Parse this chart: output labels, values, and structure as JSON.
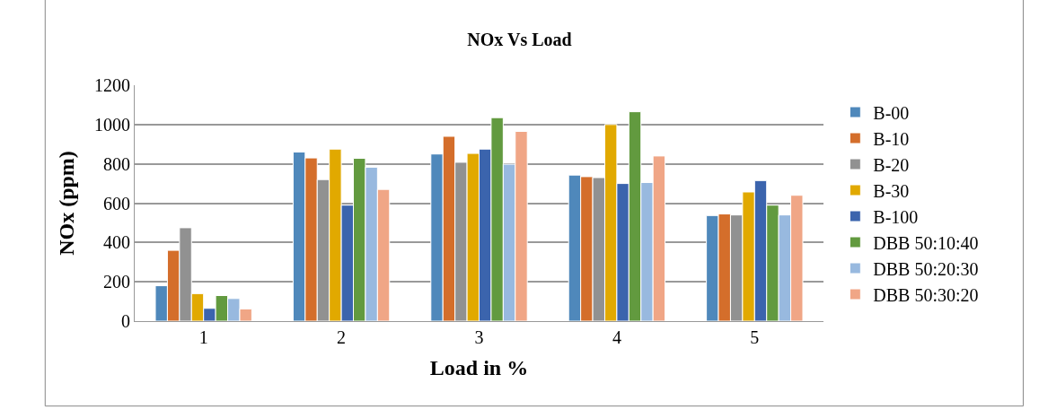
{
  "chart_data": {
    "type": "bar",
    "title": "NOx Vs Load",
    "xlabel": "Load in %",
    "ylabel": "NOx (ppm)",
    "categories": [
      "1",
      "2",
      "3",
      "4",
      "5"
    ],
    "series": [
      {
        "name": "B-00",
        "color": "#4f88bb",
        "values": [
          180,
          860,
          850,
          743,
          537
        ]
      },
      {
        "name": "B-10",
        "color": "#d46e2b",
        "values": [
          360,
          830,
          940,
          735,
          545
        ]
      },
      {
        "name": "B-20",
        "color": "#919191",
        "values": [
          475,
          720,
          808,
          730,
          540
        ]
      },
      {
        "name": "B-30",
        "color": "#e1a900",
        "values": [
          140,
          875,
          853,
          1000,
          657
        ]
      },
      {
        "name": "B-100",
        "color": "#3b64ad",
        "values": [
          65,
          590,
          875,
          700,
          715
        ]
      },
      {
        "name": "DBB 50:10:40",
        "color": "#629a3f",
        "values": [
          130,
          828,
          1035,
          1065,
          590
        ]
      },
      {
        "name": "DBB 50:20:30",
        "color": "#98b9df",
        "values": [
          115,
          783,
          798,
          705,
          540
        ]
      },
      {
        "name": "DBB 50:30:20",
        "color": "#f0a686",
        "values": [
          62,
          670,
          965,
          840,
          640
        ]
      }
    ],
    "ylim": [
      0,
      1200
    ],
    "yticks": [
      0,
      200,
      400,
      600,
      800,
      1000,
      1200
    ],
    "grid": "y",
    "legend": "right"
  }
}
